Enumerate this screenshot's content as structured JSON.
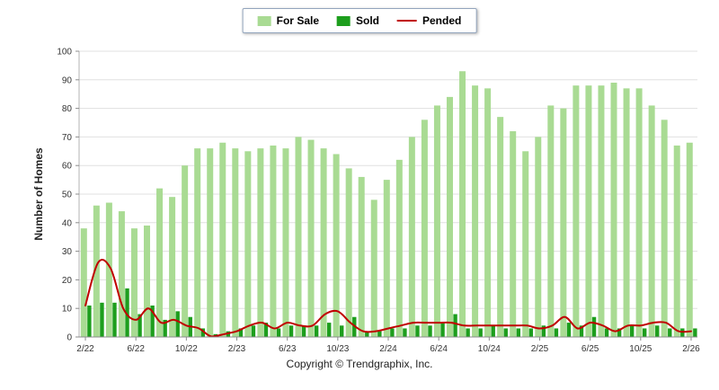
{
  "page": {
    "copyright": "Copyright © Trendgraphix, Inc."
  },
  "legend": {
    "for_sale": "For Sale",
    "sold": "Sold",
    "pended": "Pended"
  },
  "colors": {
    "for_sale": "#a9db93",
    "sold": "#1d9e1d",
    "pended": "#c00000",
    "grid": "#e0e0e0",
    "axis": "#8c8c8c",
    "axis_light": "#b3b3b3",
    "tick_text": "#333333"
  },
  "chart_data": {
    "type": "bar",
    "title": "",
    "xlabel": "",
    "ylabel": "Number of Homes",
    "ylim": [
      0,
      100
    ],
    "ytick_interval": 10,
    "grid": true,
    "legend_position": "top",
    "x_tick_labels": [
      "2/22",
      "6/22",
      "10/22",
      "2/23",
      "6/23",
      "10/23",
      "2/24",
      "6/24",
      "10/24",
      "2/25",
      "6/25",
      "10/25",
      "2/26"
    ],
    "categories": [
      "2/22",
      "3/22",
      "4/22",
      "5/22",
      "6/22",
      "7/22",
      "8/22",
      "9/22",
      "10/22",
      "11/22",
      "12/22",
      "1/23",
      "2/23",
      "3/23",
      "4/23",
      "5/23",
      "6/23",
      "7/23",
      "8/23",
      "9/23",
      "10/23",
      "11/23",
      "12/23",
      "1/24",
      "2/24",
      "3/24",
      "4/24",
      "5/24",
      "6/24",
      "7/24",
      "8/24",
      "9/24",
      "10/24",
      "11/24",
      "12/24",
      "1/25",
      "2/25",
      "3/25",
      "4/25",
      "5/25",
      "6/25",
      "7/25",
      "8/25",
      "9/25",
      "10/25",
      "11/25",
      "12/25",
      "1/26",
      "2/26"
    ],
    "series": [
      {
        "name": "For Sale",
        "type": "bar",
        "values": [
          38,
          46,
          47,
          44,
          38,
          39,
          52,
          49,
          60,
          66,
          66,
          68,
          66,
          65,
          66,
          67,
          66,
          70,
          69,
          66,
          64,
          59,
          56,
          48,
          55,
          62,
          70,
          76,
          81,
          84,
          93,
          88,
          87,
          77,
          72,
          65,
          70,
          81,
          80,
          88,
          88,
          88,
          89,
          87,
          87,
          81,
          76,
          67,
          68
        ]
      },
      {
        "name": "Sold",
        "type": "bar",
        "values": [
          11,
          12,
          12,
          17,
          8,
          11,
          6,
          9,
          7,
          3,
          1,
          2,
          3,
          4,
          5,
          3,
          4,
          4,
          4,
          5,
          4,
          7,
          2,
          2,
          3,
          3,
          4,
          4,
          5,
          8,
          3,
          3,
          4,
          3,
          3,
          3,
          4,
          3,
          5,
          4,
          7,
          3,
          3,
          4,
          3,
          4,
          3,
          3,
          3
        ]
      },
      {
        "name": "Pended",
        "type": "line",
        "values": [
          11,
          26,
          24,
          10,
          6,
          10,
          5,
          6,
          4,
          3,
          0,
          1,
          2,
          4,
          5,
          3,
          5,
          4,
          4,
          8,
          9,
          5,
          2,
          2,
          3,
          4,
          5,
          5,
          5,
          5,
          4,
          4,
          4,
          4,
          4,
          4,
          3,
          4,
          7,
          3,
          5,
          4,
          2,
          4,
          4,
          5,
          5,
          2,
          2
        ]
      }
    ]
  }
}
